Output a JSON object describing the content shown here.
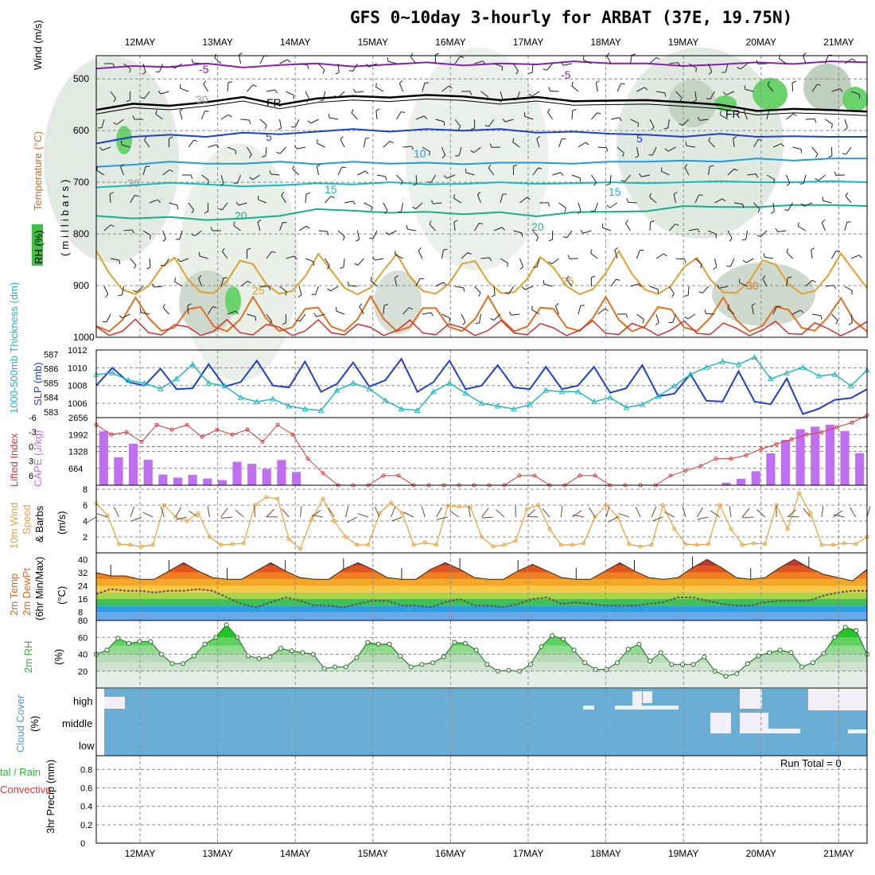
{
  "title": "GFS 0~10day 3-hourly for ARBAT (37E, 19.75N)",
  "dates": [
    "12MAY",
    "13MAY",
    "14MAY",
    "15MAY",
    "16MAY",
    "17MAY",
    "18MAY",
    "19MAY",
    "20MAY",
    "21MAY"
  ],
  "panel_labels": {
    "upper": {
      "wind": "Wind (m/s)",
      "temp": "Temperature (°C)",
      "rh": "RH (%)",
      "mb": "(millibars)"
    },
    "slp": {
      "slp": "SLP (mb)",
      "thick": "1000-500mb Thickness (dm)"
    },
    "cape": {
      "cape": "CAPE (J/kg)",
      "li": "Lifted Index"
    },
    "wind10": {
      "l1": "10m Wind",
      "l2": "Speed",
      "l3": "& Barbs",
      "u": "(m/s)"
    },
    "temp2m": {
      "l1": "2m Temp",
      "l2": "2m DewPt",
      "l3": "(6hr Min/Max)",
      "u": "(°C)"
    },
    "rh2m": {
      "l1": "2m RH",
      "u": "(%)"
    },
    "cloud": {
      "l1": "Cloud Cover",
      "u": "(%)",
      "high": "high",
      "middle": "middle",
      "low": "low"
    },
    "precip": {
      "l1": "Total / Rain",
      "l2": "Convective",
      "l3": "3hr Precip (mm)"
    }
  },
  "run_total": "Run Total = 0",
  "colors": {
    "slp": "#1e3fcf",
    "thickness": "#22b7c4",
    "cape_bar": "#bf6ff0",
    "lifted_index": "#d63a3a",
    "wind_speed": "#e8a23a",
    "rh_green": "#3fbf3f",
    "cloud_fill": "#6aaed6",
    "dewpoint": "#555555"
  },
  "chart_data": [
    {
      "type": "contour",
      "name": "upper-air cross section",
      "y_axis": "Pressure (millibars)",
      "yticks": [
        500,
        600,
        700,
        800,
        900,
        1000
      ],
      "ylim": [
        455,
        1000
      ],
      "isotherm_labels": [
        "-5",
        "-5",
        "FR",
        "FR",
        "5",
        "5",
        "10",
        "15",
        "15",
        "20",
        "20",
        "25",
        "25",
        "30",
        "30",
        "30"
      ],
      "isotherms": [
        {
          "label": "-5",
          "p": [
            480,
            475,
            477,
            470,
            478,
            473,
            470,
            476,
            472,
            468,
            474,
            470,
            472,
            466,
            470,
            470,
            475,
            472,
            468,
            471,
            466,
            468
          ]
        },
        {
          "label": "FR",
          "p": [
            560,
            548,
            552,
            545,
            535,
            550,
            538,
            533,
            536,
            531,
            534,
            541,
            535,
            543,
            542,
            541,
            545,
            550,
            562,
            558,
            560,
            563
          ]
        },
        {
          "label": "5",
          "p": [
            625,
            612,
            608,
            612,
            604,
            607,
            602,
            597,
            602,
            597,
            600,
            597,
            604,
            602,
            606,
            608,
            612,
            606,
            612,
            611,
            612,
            612
          ]
        },
        {
          "label": "10",
          "p": [
            670,
            666,
            660,
            664,
            664,
            660,
            665,
            660,
            664,
            662,
            665,
            662,
            662,
            664,
            660,
            660,
            658,
            660,
            654,
            658,
            654,
            654
          ]
        },
        {
          "label": "15",
          "p": [
            710,
            706,
            701,
            704,
            708,
            706,
            702,
            704,
            700,
            704,
            703,
            700,
            703,
            702,
            700,
            702,
            700,
            698,
            700,
            700,
            698,
            700
          ]
        },
        {
          "label": "20",
          "p": [
            765,
            770,
            767,
            773,
            770,
            765,
            752,
            755,
            759,
            757,
            762,
            758,
            766,
            758,
            757,
            756,
            746,
            748,
            748,
            744,
            744,
            746
          ]
        }
      ]
    },
    {
      "type": "line",
      "name": "SLP and thickness",
      "yticks_slp": [
        1006,
        1008,
        1010,
        1012
      ],
      "yticks_thickness": [
        583,
        584,
        585,
        586,
        587
      ],
      "series": [
        {
          "name": "SLP (mb)",
          "axis": "slp",
          "ylim": [
            1004.4,
            1012
          ],
          "values": [
            1008.0,
            1010.0,
            1008.4,
            1008.0,
            1009.9,
            1007.6,
            1007.7,
            1010.4,
            1007.9,
            1008.4,
            1010.8,
            1008.0,
            1007.8,
            1010.7,
            1007.3,
            1008.2,
            1010.6,
            1007.9,
            1008.6,
            1011.0,
            1007.3,
            1008.4,
            1010.8,
            1007.6,
            1008.0,
            1010.3,
            1007.8,
            1007.6,
            1010.1,
            1007.6,
            1008.0,
            1010.1,
            1007.2,
            1007.7,
            1010.3,
            1006.8,
            1007.1,
            1009.3,
            1006.3,
            1006.2,
            1009.6,
            1006.2,
            1005.9,
            1008.8,
            1004.8,
            1005.4,
            1006.4,
            1006.6,
            1007.6
          ]
        },
        {
          "name": "1000-500mb Thickness (dm)",
          "axis": "thickness",
          "ylim": [
            582.6,
            587.3
          ],
          "values": [
            585.6,
            585.7,
            585.2,
            585.0,
            584.6,
            585.3,
            586.3,
            585.0,
            584.8,
            584.0,
            583.7,
            583.9,
            583.4,
            583.2,
            583.1,
            584.5,
            585.0,
            584.6,
            583.8,
            583.2,
            583.1,
            584.4,
            585.0,
            584.3,
            583.6,
            583.4,
            583.2,
            583.5,
            584.5,
            584.4,
            584.4,
            583.7,
            584.0,
            583.3,
            583.5,
            584.1,
            584.8,
            585.6,
            586.1,
            586.5,
            586.3,
            586.8,
            585.3,
            585.7,
            586.1,
            585.5,
            585.6,
            584.8,
            585.9
          ]
        }
      ]
    },
    {
      "type": "bar+line",
      "name": "CAPE and Lifted Index",
      "yticks_cape": [
        664,
        1328,
        1992,
        2656
      ],
      "yticks_li": [
        -6,
        -3,
        0,
        3,
        6
      ],
      "series": [
        {
          "name": "CAPE (J/kg)",
          "axis": "cape",
          "ylim": [
            0,
            2656
          ],
          "values": [
            2120,
            1100,
            1630,
            1000,
            420,
            300,
            410,
            260,
            200,
            920,
            840,
            640,
            990,
            520,
            0,
            0,
            0,
            0,
            0,
            0,
            0,
            0,
            0,
            0,
            0,
            0,
            0,
            0,
            0,
            0,
            0,
            0,
            0,
            0,
            0,
            0,
            0,
            0,
            0,
            0,
            0,
            0,
            100,
            250,
            550,
            1250,
            1780,
            2200,
            2300,
            2380,
            2130,
            1260
          ]
        },
        {
          "name": "Lifted Index",
          "axis": "li",
          "ylim": [
            8,
            -6
          ],
          "values": [
            -4.5,
            -2.5,
            -3,
            -1,
            -4.5,
            -3.5,
            -4.5,
            -2,
            -3.5,
            -2.5,
            -3.5,
            -1,
            -4.5,
            -2.5,
            2.5,
            5.5,
            8,
            8,
            8,
            6,
            6,
            8,
            8,
            8,
            8,
            8,
            8,
            8,
            6,
            6,
            8,
            8,
            6,
            6,
            8,
            8,
            8,
            8,
            6,
            5,
            4,
            2.5,
            2.5,
            1.8,
            0.5,
            -0.5,
            -1.5,
            -2.5,
            -3,
            -4,
            -5,
            -6.5
          ]
        }
      ]
    },
    {
      "type": "line",
      "name": "10m Wind Speed",
      "yticks": [
        2,
        4,
        6,
        8
      ],
      "ylim": [
        0,
        8
      ],
      "values": [
        6.2,
        4.7,
        1.1,
        1.0,
        0.8,
        1.0,
        6.0,
        4.5,
        4.0,
        5.0,
        2.0,
        1.0,
        1.1,
        1.2,
        6.0,
        7.0,
        6.8,
        1.7,
        0.5,
        4.2,
        6.8,
        4.0,
        2.0,
        1.0,
        1.0,
        5.0,
        6.3,
        5.0,
        1.0,
        1.3,
        1.0,
        5.9,
        5.8,
        5.8,
        2.0,
        0.8,
        1.0,
        1.5,
        5.5,
        6.0,
        3.0,
        1.0,
        1.0,
        1.2,
        4.5,
        6.0,
        4.5,
        1.1,
        0.8,
        1.0,
        6.0,
        3.0,
        1.1,
        1.0,
        1.1,
        6.0,
        3.0,
        1.0,
        1.2,
        1.1,
        6.0,
        3.0,
        7.5,
        5.0,
        1.0,
        1.0,
        1.2,
        1.1,
        2.0
      ]
    },
    {
      "type": "area",
      "name": "2m Temp and DewPt",
      "yticks": [
        8,
        16,
        24,
        32,
        40
      ],
      "ylim": [
        3,
        44
      ],
      "series": [
        {
          "name": "2m Temp",
          "values": [
            32,
            30,
            30,
            28,
            28,
            33,
            38,
            33,
            29,
            28,
            28,
            33,
            38,
            33,
            29,
            28,
            28,
            34,
            38,
            34,
            29,
            28,
            28,
            34,
            38,
            34,
            29,
            28,
            28,
            33,
            37,
            33,
            29,
            28,
            28,
            33,
            38,
            33,
            29,
            28,
            29,
            35,
            40,
            35,
            29,
            28,
            29,
            35,
            40,
            35,
            31,
            29,
            27,
            34
          ]
        },
        {
          "name": "2m DewPt",
          "values": [
            19,
            22,
            21,
            21,
            20,
            21,
            21,
            22,
            21,
            17,
            13,
            11,
            14,
            17,
            15,
            12,
            12,
            11,
            13,
            15,
            15,
            12,
            12,
            11,
            14,
            16,
            12,
            12,
            11,
            13,
            16,
            17,
            13,
            14,
            13,
            12,
            12,
            12,
            13,
            14,
            17,
            17,
            15,
            13,
            12,
            12,
            14,
            15,
            15,
            15,
            18,
            20,
            21,
            21
          ]
        }
      ]
    },
    {
      "type": "area",
      "name": "2m RH",
      "yticks": [
        20,
        40,
        60,
        80
      ],
      "ylim": [
        0,
        80
      ],
      "values": [
        40,
        45,
        59,
        53,
        55,
        55,
        40,
        29,
        29,
        38,
        52,
        60,
        75,
        60,
        38,
        35,
        37,
        47,
        44,
        42,
        40,
        23,
        25,
        25,
        36,
        54,
        52,
        52,
        38,
        25,
        28,
        30,
        37,
        54,
        53,
        45,
        28,
        20,
        21,
        20,
        28,
        49,
        62,
        58,
        45,
        30,
        22,
        22,
        30,
        46,
        52,
        32,
        42,
        28,
        28,
        28,
        37,
        20,
        14,
        17,
        29,
        38,
        42,
        45,
        42,
        25,
        30,
        41,
        60,
        72,
        68,
        40
      ]
    },
    {
      "type": "bar",
      "name": "Cloud Cover",
      "categories": [
        "high",
        "middle",
        "low"
      ],
      "values_high": [
        0,
        0,
        0,
        0,
        0,
        0,
        0,
        0,
        0,
        0,
        0,
        0,
        0,
        0,
        0,
        0,
        0,
        0,
        0,
        0,
        0,
        0,
        0,
        0,
        0,
        0,
        0,
        0,
        0,
        0,
        0,
        0,
        0,
        0,
        0,
        0,
        0,
        0,
        0,
        0,
        0,
        0,
        0,
        0,
        0,
        0,
        0,
        0,
        0,
        0,
        0,
        0,
        0,
        0,
        0,
        0,
        0,
        0,
        0,
        0,
        0,
        0,
        0,
        0,
        0,
        0,
        0,
        0,
        0,
        0,
        0,
        0,
        0,
        0,
        0,
        0,
        0,
        0,
        0,
        0
      ],
      "values_middle": [
        0,
        0,
        0,
        0,
        0,
        0,
        0,
        0,
        0,
        0,
        0,
        0,
        0,
        0,
        0,
        0,
        0,
        0,
        0,
        0,
        0,
        0,
        0,
        0,
        0,
        0,
        0,
        0,
        0,
        0,
        0,
        0,
        0,
        0,
        0,
        0,
        0,
        0,
        0,
        0,
        0,
        0,
        0,
        0,
        0,
        0,
        0,
        0,
        0,
        0,
        0,
        0,
        0,
        0,
        0,
        0,
        0,
        0,
        0,
        0,
        0,
        0,
        0,
        0,
        0,
        0,
        0,
        0,
        0,
        0,
        0,
        0,
        0,
        0,
        0,
        0,
        0,
        0,
        0,
        0
      ]
    },
    {
      "type": "bar",
      "name": "3hr Precip",
      "yticks": [
        0,
        0.2,
        0.4,
        0.6,
        0.8
      ],
      "ylim": [
        0,
        0.95
      ],
      "values": [
        0
      ]
    }
  ]
}
